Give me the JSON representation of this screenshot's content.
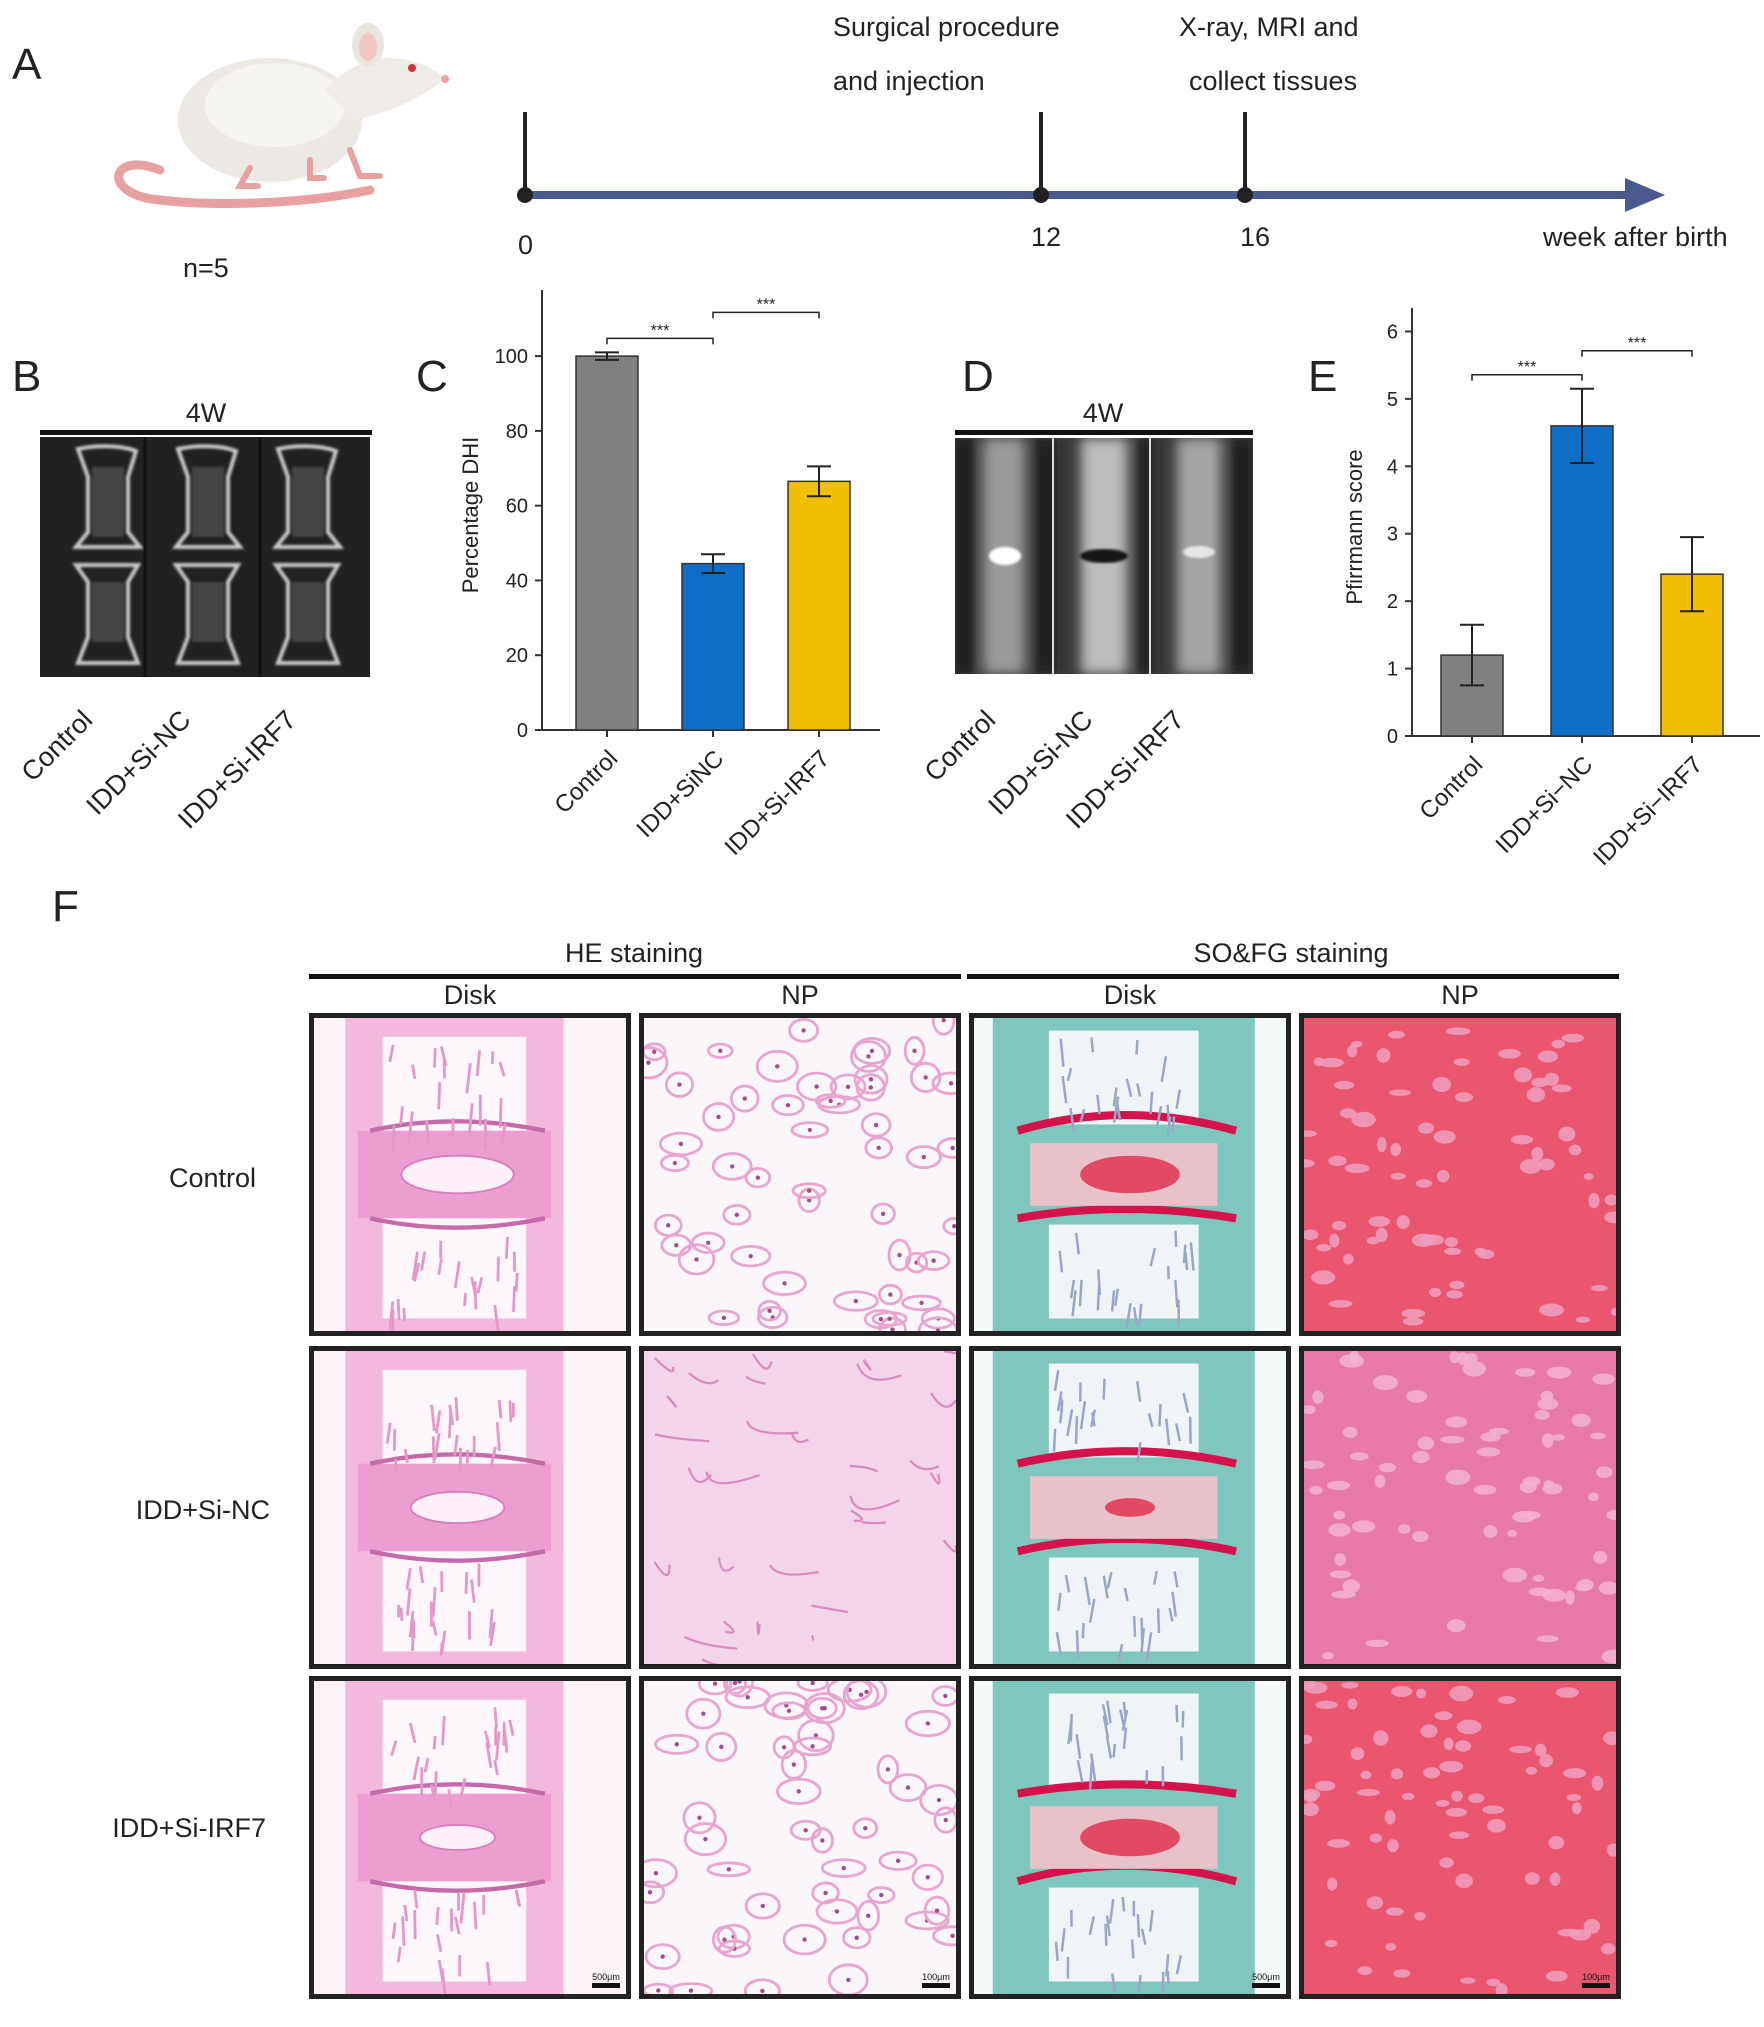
{
  "panels": {
    "A": "A",
    "B": "B",
    "C": "C",
    "D": "D",
    "E": "E",
    "F": "F"
  },
  "timeline": {
    "n_label": "n=5",
    "event1": [
      "Surgical procedure",
      "and injection"
    ],
    "event2": [
      "X-ray, MRI and",
      "collect tissues"
    ],
    "ticks": [
      "0",
      "12",
      "16"
    ],
    "axis_label": "week after birth",
    "axis_color": "#4a5a8f"
  },
  "xray": {
    "time_label": "4W",
    "groups": [
      "Control",
      "IDD+Si-NC",
      "IDD+Si-IRF7"
    ]
  },
  "mri": {
    "time_label": "4W",
    "groups": [
      "Control",
      "IDD+Si-NC",
      "IDD+Si-IRF7"
    ]
  },
  "chart_data": [
    {
      "type": "bar",
      "panel": "C",
      "categories": [
        "Control",
        "IDD+SiNC",
        "IDD+Si-IRF7"
      ],
      "values": [
        100,
        44.5,
        66.5
      ],
      "errors": [
        1.0,
        2.5,
        4.0
      ],
      "colors": [
        "#808080",
        "#0f6fc6",
        "#f0c000"
      ],
      "ylabel": "Percentage DHI",
      "ylim": [
        0,
        115
      ],
      "yticks": [
        0,
        20,
        40,
        60,
        80,
        100
      ],
      "significance": [
        {
          "from": 0,
          "to": 1,
          "label": "***"
        },
        {
          "from": 1,
          "to": 2,
          "label": "***"
        }
      ]
    },
    {
      "type": "bar",
      "panel": "E",
      "categories": [
        "Control",
        "IDD+Si−NC",
        "IDD+Si−IRF7"
      ],
      "values": [
        1.2,
        4.6,
        2.4
      ],
      "errors": [
        0.45,
        0.55,
        0.55
      ],
      "colors": [
        "#808080",
        "#0f6fc6",
        "#f0c000"
      ],
      "ylabel": "Pfirrmann score",
      "ylim": [
        0,
        6.2
      ],
      "yticks": [
        0,
        1,
        2,
        3,
        4,
        5,
        6
      ],
      "significance": [
        {
          "from": 0,
          "to": 1,
          "label": "***"
        },
        {
          "from": 1,
          "to": 2,
          "label": "***"
        }
      ]
    }
  ],
  "histology": {
    "headers": [
      "HE staining",
      "SO&FG staining"
    ],
    "subheaders": [
      "Disk",
      "NP",
      "Disk",
      "NP"
    ],
    "rows": [
      "Control",
      "IDD+Si-NC",
      "IDD+Si-IRF7"
    ],
    "scale_bars": [
      "500μm",
      "100μm",
      "500μm",
      "100μm"
    ]
  }
}
